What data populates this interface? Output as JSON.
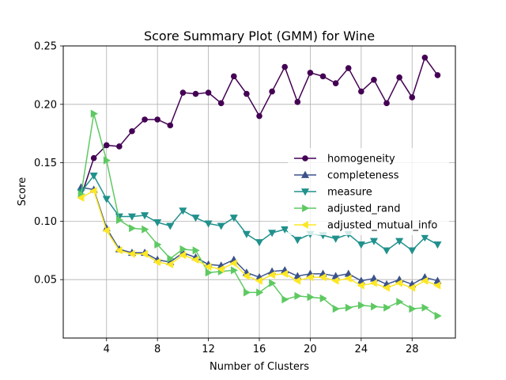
{
  "chart_data": {
    "type": "line",
    "title": "Score Summary Plot (GMM) for Wine",
    "xlabel": "Number of Clusters",
    "ylabel": "Score",
    "xlim": [
      0.6,
      31.4
    ],
    "ylim": [
      0.0,
      0.25
    ],
    "xticks": [
      4,
      8,
      12,
      16,
      20,
      24,
      28
    ],
    "yticks": [
      0.05,
      0.1,
      0.15,
      0.2,
      0.25
    ],
    "ytick_labels": [
      "0.05",
      "0.10",
      "0.15",
      "0.20",
      "0.25"
    ],
    "grid": true,
    "legend_position": "center-right",
    "x": [
      2,
      3,
      4,
      5,
      6,
      7,
      8,
      9,
      10,
      11,
      12,
      13,
      14,
      15,
      16,
      17,
      18,
      19,
      20,
      21,
      22,
      23,
      24,
      25,
      26,
      27,
      28,
      29,
      30
    ],
    "series": [
      {
        "name": "homogeneity",
        "color": "#440154",
        "marker": "circle",
        "values": [
          0.121,
          0.154,
          0.165,
          0.164,
          0.177,
          0.187,
          0.187,
          0.182,
          0.21,
          0.209,
          0.21,
          0.201,
          0.224,
          0.209,
          0.19,
          0.211,
          0.232,
          0.202,
          0.227,
          0.224,
          0.218,
          0.231,
          0.211,
          0.221,
          0.201,
          0.223,
          0.206,
          0.24,
          0.225
        ]
      },
      {
        "name": "completeness",
        "color": "#3b528b",
        "marker": "triangle-up",
        "values": [
          0.129,
          0.127,
          0.094,
          0.076,
          0.073,
          0.073,
          0.067,
          0.065,
          0.073,
          0.069,
          0.063,
          0.062,
          0.067,
          0.056,
          0.052,
          0.057,
          0.058,
          0.053,
          0.055,
          0.055,
          0.053,
          0.055,
          0.049,
          0.051,
          0.046,
          0.05,
          0.046,
          0.052,
          0.049
        ]
      },
      {
        "name": "measure",
        "color": "#21918c",
        "marker": "triangle-down",
        "values": [
          0.125,
          0.139,
          0.119,
          0.104,
          0.104,
          0.105,
          0.099,
          0.096,
          0.109,
          0.103,
          0.098,
          0.096,
          0.103,
          0.089,
          0.082,
          0.09,
          0.093,
          0.084,
          0.089,
          0.088,
          0.085,
          0.089,
          0.08,
          0.083,
          0.075,
          0.083,
          0.075,
          0.086,
          0.08
        ]
      },
      {
        "name": "adjusted_rand",
        "color": "#5ec962",
        "marker": "triangle-right",
        "values": [
          0.123,
          0.192,
          0.152,
          0.101,
          0.094,
          0.093,
          0.08,
          0.068,
          0.076,
          0.075,
          0.056,
          0.057,
          0.058,
          0.039,
          0.039,
          0.047,
          0.033,
          0.036,
          0.035,
          0.034,
          0.025,
          0.026,
          0.028,
          0.027,
          0.026,
          0.031,
          0.025,
          0.026,
          0.019
        ]
      },
      {
        "name": "adjusted_mutual_info",
        "color": "#fde725",
        "marker": "triangle-left",
        "values": [
          0.12,
          0.126,
          0.092,
          0.075,
          0.072,
          0.072,
          0.065,
          0.063,
          0.071,
          0.067,
          0.061,
          0.059,
          0.064,
          0.053,
          0.049,
          0.054,
          0.055,
          0.049,
          0.052,
          0.052,
          0.049,
          0.051,
          0.045,
          0.047,
          0.043,
          0.047,
          0.043,
          0.049,
          0.045
        ]
      }
    ]
  }
}
